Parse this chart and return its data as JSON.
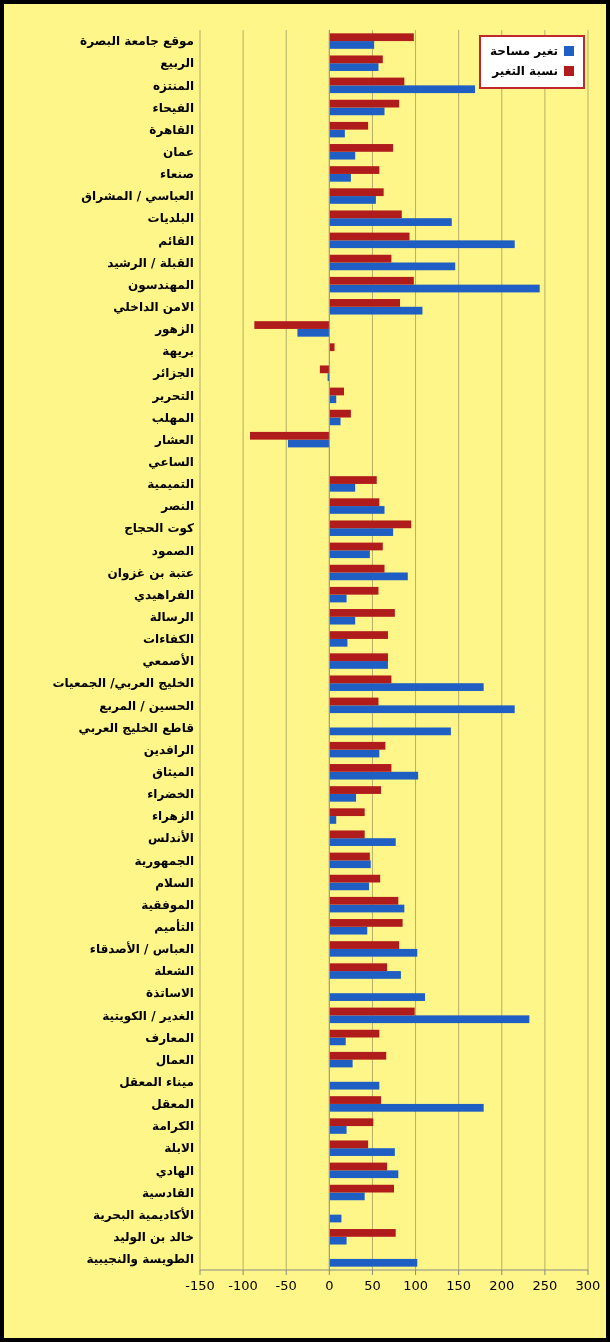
{
  "chart_data": {
    "type": "bar",
    "orientation": "horizontal",
    "categories": [
      "موقع جامعة البصرة",
      "الربيع",
      "المنتزه",
      "الفيحاء",
      "القاهرة",
      "عمان",
      "صنعاء",
      "العباسي / المشراق",
      "البلديات",
      "القائم",
      "القبلة / الرشيد",
      "المهندسون",
      "الامن الداخلي",
      "الزهور",
      "بريهة",
      "الجزائر",
      "التحرير",
      "المهلب",
      "العشار",
      "الساعي",
      "التميمية",
      "النصر",
      "كوت الحجاج",
      "الصمود",
      "عتبة بن غزوان",
      "الفراهيدي",
      "الرسالة",
      "الكفاءات",
      "الأصمعي",
      "الخليج العربي/ الجمعيات",
      "الحسين / المربع",
      "قاطع الخليج العربي",
      "الرافدين",
      "الميثاق",
      "الخضراء",
      "الزهراء",
      "الأندلس",
      "الجمهورية",
      "السلام",
      "الموفقية",
      "التأميم",
      "العباس / الأصدقاء",
      "الشعلة",
      "الاساتذة",
      "الغدير / الكويتية",
      "المعارف",
      "العمال",
      "ميناء المعقل",
      "المعقل",
      "الكرامة",
      "الابلة",
      "الهادي",
      "القادسية",
      "الأكاديمية البحرية",
      "خالد بن الوليد",
      "الطويسة والنجيبية"
    ],
    "series": [
      {
        "name": "تغير مساحة",
        "color": "#1f5fc4",
        "values": [
          52,
          57,
          169,
          64,
          18,
          30,
          25,
          54,
          142,
          215,
          146,
          244,
          108,
          -37,
          null,
          -2,
          8,
          13,
          -48,
          0,
          30,
          64,
          74,
          47,
          91,
          20,
          30,
          21,
          68,
          179,
          215,
          141,
          58,
          103,
          31,
          8,
          77,
          48,
          46,
          87,
          44,
          102,
          83,
          111,
          232,
          19,
          27,
          58,
          179,
          20,
          76,
          80,
          41,
          14,
          20,
          102
        ]
      },
      {
        "name": "نسبة التغير",
        "color": "#b01c1c",
        "values": [
          98,
          62,
          87,
          81,
          45,
          74,
          58,
          63,
          84,
          93,
          72,
          98,
          82,
          -87,
          6,
          -11,
          17,
          25,
          -92,
          0,
          55,
          58,
          95,
          62,
          64,
          57,
          76,
          68,
          68,
          72,
          57,
          null,
          65,
          72,
          60,
          41,
          41,
          47,
          59,
          80,
          85,
          81,
          67,
          null,
          99,
          58,
          66,
          null,
          60,
          51,
          45,
          67,
          75,
          null,
          77,
          null
        ]
      }
    ],
    "xlim": [
      -150,
      300
    ],
    "xticks": [
      -150,
      -100,
      -50,
      0,
      50,
      100,
      150,
      200,
      250,
      300
    ],
    "grid": "x",
    "legend": "top right"
  }
}
